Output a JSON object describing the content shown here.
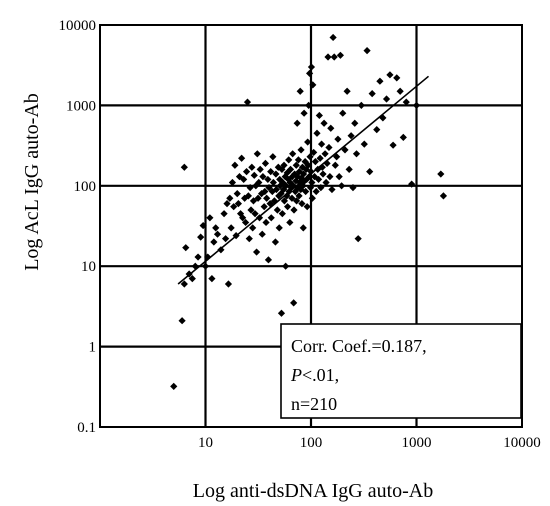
{
  "chart_data": {
    "type": "scatter",
    "xscale": "log",
    "yscale": "log",
    "xlim": [
      1,
      10000
    ],
    "ylim": [
      0.1,
      10000
    ],
    "grid": true,
    "xlabel": "Log anti-dsDNA IgG auto-Ab",
    "ylabel": "Log AcL IgG auto-Ab",
    "x_ticks": [
      {
        "value": 10,
        "label": "10"
      },
      {
        "value": 100,
        "label": "100"
      },
      {
        "value": 1000,
        "label": "1000"
      },
      {
        "value": 10000,
        "label": "10000"
      }
    ],
    "y_ticks": [
      {
        "value": 0.1,
        "label": "0.1"
      },
      {
        "value": 1,
        "label": "1"
      },
      {
        "value": 10,
        "label": "10"
      },
      {
        "value": 100,
        "label": "100"
      },
      {
        "value": 1000,
        "label": "1000"
      },
      {
        "value": 10000,
        "label": "10000"
      }
    ],
    "annotation": {
      "line1": "Corr. Coef.=0.187,",
      "line2_italic": "P",
      "line2_rest": "<.01,",
      "line3": "n=210"
    },
    "trendline": {
      "x": [
        5.5,
        1300
      ],
      "y": [
        6,
        2300
      ]
    },
    "points": [
      [
        5,
        0.32
      ],
      [
        6,
        2.1
      ],
      [
        6.3,
        6
      ],
      [
        6.5,
        17
      ],
      [
        6.3,
        170
      ],
      [
        7,
        8
      ],
      [
        7.5,
        7
      ],
      [
        8,
        10
      ],
      [
        8.5,
        13
      ],
      [
        9,
        23
      ],
      [
        9.5,
        32
      ],
      [
        10,
        10
      ],
      [
        10.5,
        13
      ],
      [
        11,
        40
      ],
      [
        11.5,
        7
      ],
      [
        12,
        20
      ],
      [
        12.5,
        30
      ],
      [
        13,
        25
      ],
      [
        14,
        16
      ],
      [
        15,
        45
      ],
      [
        15.5,
        22
      ],
      [
        16,
        60
      ],
      [
        16.5,
        6
      ],
      [
        17,
        70
      ],
      [
        17.5,
        30
      ],
      [
        18,
        110
      ],
      [
        18.5,
        55
      ],
      [
        19,
        180
      ],
      [
        19.5,
        24
      ],
      [
        20,
        80
      ],
      [
        20.5,
        60
      ],
      [
        21,
        130
      ],
      [
        21.5,
        45
      ],
      [
        22,
        220
      ],
      [
        22.5,
        40
      ],
      [
        23,
        120
      ],
      [
        23.5,
        70
      ],
      [
        24,
        35
      ],
      [
        24.5,
        150
      ],
      [
        25,
        1100
      ],
      [
        25.5,
        75
      ],
      [
        26,
        22
      ],
      [
        26.5,
        95
      ],
      [
        27,
        50
      ],
      [
        27.5,
        170
      ],
      [
        28,
        30
      ],
      [
        28.5,
        65
      ],
      [
        29,
        135
      ],
      [
        29.5,
        45
      ],
      [
        30,
        100
      ],
      [
        30.5,
        15
      ],
      [
        31,
        250
      ],
      [
        31.5,
        70
      ],
      [
        32,
        110
      ],
      [
        32.5,
        40
      ],
      [
        33,
        160
      ],
      [
        34,
        80
      ],
      [
        34.5,
        25
      ],
      [
        35,
        130
      ],
      [
        36,
        55
      ],
      [
        36.5,
        85
      ],
      [
        37,
        190
      ],
      [
        37.5,
        35
      ],
      [
        38,
        70
      ],
      [
        39,
        120
      ],
      [
        39.5,
        12
      ],
      [
        40,
        95
      ],
      [
        41,
        60
      ],
      [
        41.5,
        150
      ],
      [
        42,
        40
      ],
      [
        43,
        85
      ],
      [
        43.5,
        230
      ],
      [
        44,
        110
      ],
      [
        45,
        65
      ],
      [
        46,
        20
      ],
      [
        46.5,
        140
      ],
      [
        47,
        90
      ],
      [
        48,
        50
      ],
      [
        49,
        170
      ],
      [
        49.5,
        75
      ],
      [
        50,
        30
      ],
      [
        50.5,
        120
      ],
      [
        51,
        100
      ],
      [
        52,
        80
      ],
      [
        52.5,
        2.6
      ],
      [
        53,
        160
      ],
      [
        53.5,
        45
      ],
      [
        54,
        110
      ],
      [
        55,
        90
      ],
      [
        55.5,
        180
      ],
      [
        56,
        65
      ],
      [
        57,
        130
      ],
      [
        57.5,
        10
      ],
      [
        58,
        100
      ],
      [
        59,
        75
      ],
      [
        59.5,
        145
      ],
      [
        60,
        55
      ],
      [
        61,
        120
      ],
      [
        61.5,
        210
      ],
      [
        62,
        85
      ],
      [
        63,
        35
      ],
      [
        63.5,
        110
      ],
      [
        64,
        160
      ],
      [
        65,
        95
      ],
      [
        66,
        70
      ],
      [
        66.5,
        130
      ],
      [
        67,
        250
      ],
      [
        68,
        100
      ],
      [
        68.5,
        3.5
      ],
      [
        69,
        50
      ],
      [
        70,
        140
      ],
      [
        71,
        85
      ],
      [
        72,
        115
      ],
      [
        72.5,
        180
      ],
      [
        73,
        65
      ],
      [
        74,
        600
      ],
      [
        74.5,
        130
      ],
      [
        75,
        95
      ],
      [
        76,
        210
      ],
      [
        77,
        75
      ],
      [
        77.5,
        150
      ],
      [
        78,
        110
      ],
      [
        79,
        1500
      ],
      [
        80,
        90
      ],
      [
        80.5,
        280
      ],
      [
        81,
        125
      ],
      [
        82,
        60
      ],
      [
        83,
        170
      ],
      [
        84,
        100
      ],
      [
        84.5,
        30
      ],
      [
        85,
        140
      ],
      [
        86,
        800
      ],
      [
        87,
        115
      ],
      [
        88,
        200
      ],
      [
        89,
        85
      ],
      [
        90,
        160
      ],
      [
        91,
        120
      ],
      [
        92,
        55
      ],
      [
        93,
        350
      ],
      [
        94,
        180
      ],
      [
        95,
        1000
      ],
      [
        96,
        130
      ],
      [
        97,
        2500
      ],
      [
        98,
        230
      ],
      [
        99,
        95
      ],
      [
        100,
        150
      ],
      [
        101,
        3000
      ],
      [
        102,
        110
      ],
      [
        103,
        70
      ],
      [
        104,
        1800
      ],
      [
        106,
        260
      ],
      [
        108,
        130
      ],
      [
        110,
        200
      ],
      [
        112,
        85
      ],
      [
        114,
        450
      ],
      [
        116,
        160
      ],
      [
        118,
        120
      ],
      [
        120,
        750
      ],
      [
        122,
        220
      ],
      [
        124,
        95
      ],
      [
        126,
        330
      ],
      [
        128,
        170
      ],
      [
        130,
        140
      ],
      [
        133,
        600
      ],
      [
        136,
        250
      ],
      [
        139,
        110
      ],
      [
        142,
        190
      ],
      [
        145,
        4000
      ],
      [
        148,
        300
      ],
      [
        151,
        130
      ],
      [
        154,
        520
      ],
      [
        158,
        90
      ],
      [
        162,
        7000
      ],
      [
        166,
        4000
      ],
      [
        170,
        180
      ],
      [
        175,
        230
      ],
      [
        180,
        380
      ],
      [
        185,
        130
      ],
      [
        190,
        4200
      ],
      [
        195,
        100
      ],
      [
        200,
        800
      ],
      [
        210,
        280
      ],
      [
        220,
        1500
      ],
      [
        230,
        160
      ],
      [
        240,
        420
      ],
      [
        250,
        95
      ],
      [
        260,
        600
      ],
      [
        270,
        250
      ],
      [
        280,
        22
      ],
      [
        300,
        1000
      ],
      [
        320,
        330
      ],
      [
        340,
        4800
      ],
      [
        360,
        150
      ],
      [
        380,
        1400
      ],
      [
        420,
        500
      ],
      [
        450,
        2000
      ],
      [
        480,
        700
      ],
      [
        520,
        1200
      ],
      [
        560,
        2400
      ],
      [
        600,
        320
      ],
      [
        650,
        2200
      ],
      [
        700,
        1500
      ],
      [
        750,
        400
      ],
      [
        800,
        1100
      ],
      [
        900,
        105
      ],
      [
        1000,
        1000
      ],
      [
        1700,
        140
      ],
      [
        1800,
        75
      ]
    ]
  }
}
